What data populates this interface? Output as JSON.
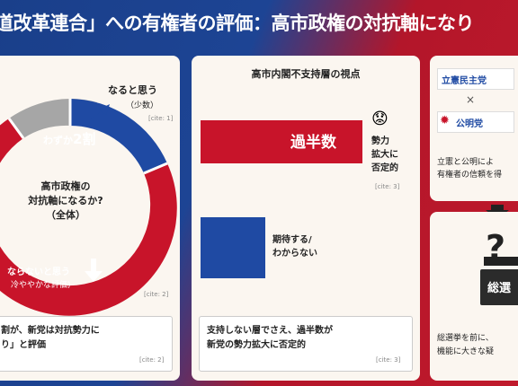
{
  "title": "道改革連合」への有権者の評価：高市政権の対抗軸になり",
  "left": {
    "naru_label": "なると思う",
    "naru_sub": "（少数）",
    "cite1": "[cite: 1]",
    "wazuka_label": "わずか",
    "wazuka_num": "2割",
    "center_question": [
      "高市政権の",
      "対抗軸になるか?",
      "（全体）"
    ],
    "naranai_label": "ならないと思う",
    "naranai_sub": "冷ややかな評価)",
    "cite2": "[cite: 2]",
    "bottom_text": [
      "割が、新党は対抗勢力に",
      "り」と評価"
    ],
    "bottom_cite": "[cite: 2]"
  },
  "middle": {
    "heading": "高市内閣不支持層の視点",
    "bar1_label": "過半数",
    "face_emoji": "😟",
    "side_text": [
      "勢力",
      "拡大に",
      "否定的"
    ],
    "cite3": "[cite: 3]",
    "bar2_text": [
      "期待する/",
      "わからない"
    ],
    "bottom_text": [
      "支持しない層でさえ、過半数が",
      "新党の勢力拡大に否定的"
    ],
    "bottom_cite": "[cite: 3]"
  },
  "right": {
    "party1": "立憲民主党",
    "cross": "×",
    "party2": "公明党",
    "text_top": [
      "立憲と公明によ",
      "有権者の信頼を得"
    ],
    "box_label": "総選",
    "text_bottom": [
      "総選挙を前に、",
      "機能に大きな疑"
    ]
  },
  "colors": {
    "blue": "#1f4aa3",
    "red": "#c8142a",
    "gray": "#a6a6a6"
  }
}
